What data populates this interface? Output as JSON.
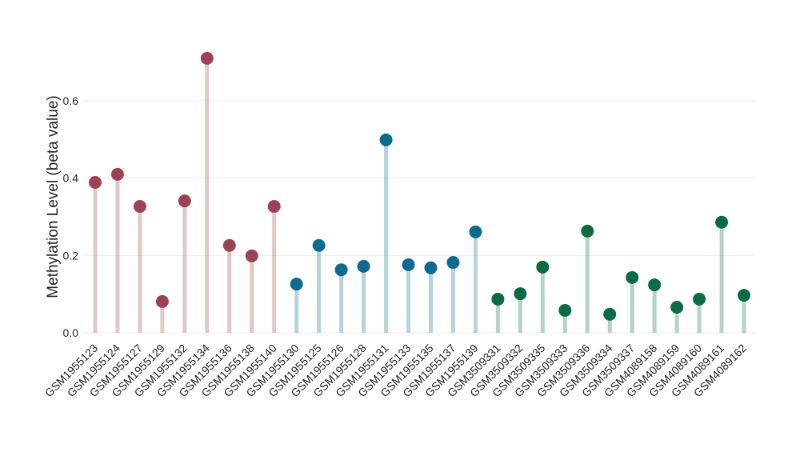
{
  "chart_data": {
    "type": "lollipop",
    "y_label": "Methylation Level (beta value)",
    "categories": [
      "GSM1955123",
      "GSM1955124",
      "GSM1955127",
      "GSM1955129",
      "GSM1955132",
      "GSM1955134",
      "GSM1955136",
      "GSM1955138",
      "GSM1955140",
      "GSM1955130",
      "GSM1955125",
      "GSM1955126",
      "GSM1955128",
      "GSM1955131",
      "GSM1955133",
      "GSM1955135",
      "GSM1955137",
      "GSM1955139",
      "GSM3509331",
      "GSM3509332",
      "GSM3509335",
      "GSM3509333",
      "GSM3509336",
      "GSM3509334",
      "GSM3509337",
      "GSM4089158",
      "GSM4089159",
      "GSM4089160",
      "GSM4089161",
      "GSM4089162"
    ],
    "values": [
      0.389,
      0.41,
      0.327,
      0.081,
      0.341,
      0.71,
      0.226,
      0.199,
      0.327,
      0.126,
      0.226,
      0.163,
      0.172,
      0.499,
      0.176,
      0.168,
      0.182,
      0.261,
      0.087,
      0.101,
      0.17,
      0.058,
      0.263,
      0.048,
      0.143,
      0.124,
      0.066,
      0.087,
      0.286,
      0.097
    ],
    "colors": [
      "#9b4352",
      "#9b4352",
      "#9b4352",
      "#9b4352",
      "#9b4352",
      "#9b4352",
      "#9b4352",
      "#9b4352",
      "#9b4352",
      "#0f6a8f",
      "#0f6a8f",
      "#0f6a8f",
      "#0f6a8f",
      "#0f6a8f",
      "#0f6a8f",
      "#0f6a8f",
      "#0f6a8f",
      "#0f6a8f",
      "#0b6b45",
      "#0b6b45",
      "#0b6b45",
      "#0b6b45",
      "#0b6b45",
      "#0b6b45",
      "#0b6b45",
      "#0b6b45",
      "#0b6b45",
      "#0b6b45",
      "#0b6b45",
      "#0b6b45"
    ],
    "ylim": [
      0,
      0.72
    ],
    "yticks": [
      {
        "value": 0,
        "label": "0.0"
      },
      {
        "value": 0.2,
        "label": "0.2"
      },
      {
        "value": 0.4,
        "label": "0.4"
      },
      {
        "value": 0.6,
        "label": "0.6"
      }
    ],
    "grid": true
  }
}
